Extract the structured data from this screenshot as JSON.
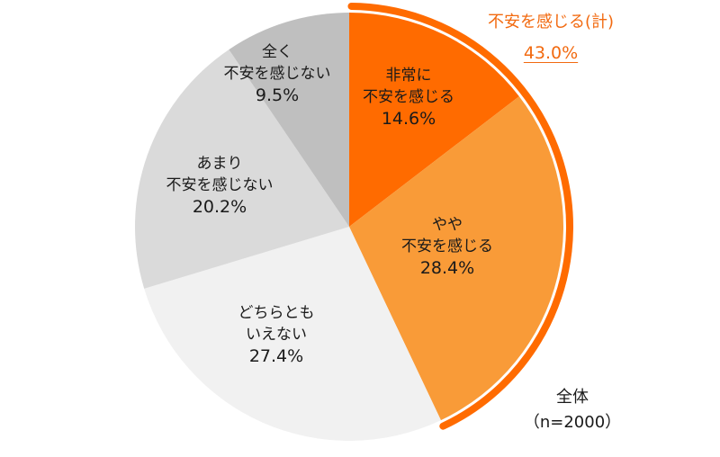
{
  "chart_data": {
    "type": "pie",
    "start": "top",
    "direction": "clockwise",
    "slices": [
      {
        "label": [
          "非常に",
          "不安を感じる"
        ],
        "value": 14.6,
        "value_label": "14.6%",
        "color": "#FF6B00"
      },
      {
        "label": [
          "やや",
          "不安を感じる"
        ],
        "value": 28.4,
        "value_label": "28.4%",
        "color": "#F99B38"
      },
      {
        "label": [
          "どちらとも",
          "いえない"
        ],
        "value": 27.4,
        "value_label": "27.4%",
        "color": "#F1F1F1"
      },
      {
        "label": [
          "あまり",
          "不安を感じない"
        ],
        "value": 20.2,
        "value_label": "20.2%",
        "color": "#DADADA"
      },
      {
        "label": [
          "全く",
          "不安を感じない"
        ],
        "value": 9.5,
        "value_label": "9.5%",
        "color": "#BFBFBF"
      }
    ],
    "group_arc": {
      "label": "不安を感じる(計)",
      "value": 43.0,
      "value_label": "43.0%",
      "color": "#FF6B00"
    },
    "base": {
      "line1": "全体",
      "line2": "（n=2000）"
    }
  }
}
